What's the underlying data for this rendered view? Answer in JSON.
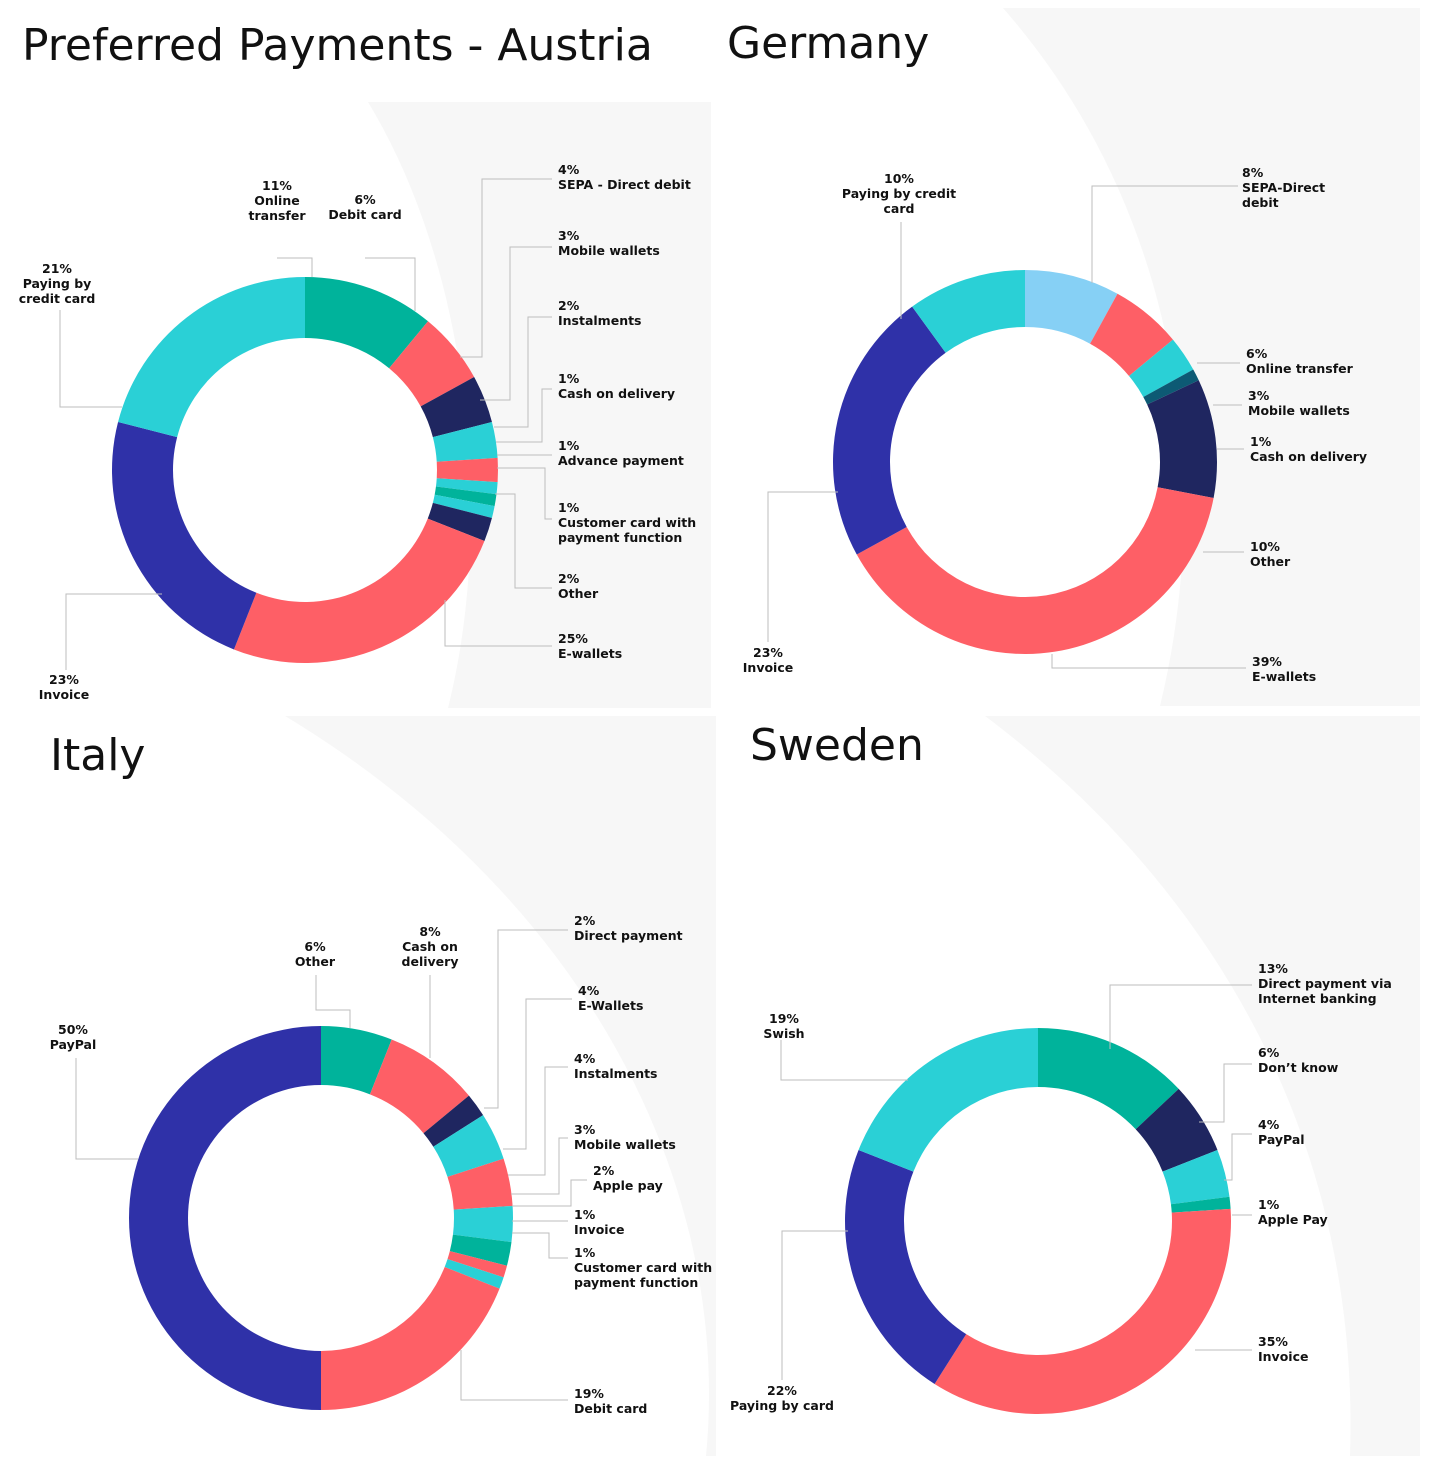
{
  "colors": {
    "teal": "#2ad0d6",
    "green": "#00b39b",
    "coral": "#fe5f66",
    "navy": "#1f2660",
    "indigo": "#2f31a8",
    "lightblue": "#86d0f5",
    "darkteal": "#0d5a74"
  },
  "chart_data": [
    {
      "type": "pie",
      "title": "Preferred Payments - Austria",
      "slices": [
        {
          "label": "Online transfer",
          "value": 11,
          "display": "11%",
          "color": "green"
        },
        {
          "label": "Debit card",
          "value": 6,
          "display": "6%",
          "color": "coral"
        },
        {
          "label": "SEPA -  Direct debit",
          "value": 4,
          "display": "4%",
          "color": "navy"
        },
        {
          "label": "Mobile wallets",
          "value": 3,
          "display": "3%",
          "color": "teal"
        },
        {
          "label": "Instalments",
          "value": 2,
          "display": "2%",
          "color": "coral"
        },
        {
          "label": "Cash on delivery",
          "value": 1,
          "display": "1%",
          "color": "teal"
        },
        {
          "label": "Advance payment",
          "value": 1,
          "display": "1%",
          "color": "green"
        },
        {
          "label": "Customer card with payment function",
          "value": 1,
          "display": "1%",
          "color": "teal"
        },
        {
          "label": "Other",
          "value": 2,
          "display": "2%",
          "color": "navy"
        },
        {
          "label": "E-wallets",
          "value": 25,
          "display": "25%",
          "color": "coral"
        },
        {
          "label": "Invoice",
          "value": 23,
          "display": "23%",
          "color": "indigo"
        },
        {
          "label": "Paying by credit card",
          "value": 21,
          "display": "21%",
          "color": "teal"
        }
      ]
    },
    {
      "type": "pie",
      "title": "Germany",
      "slices": [
        {
          "label": "SEPA-Direct debit",
          "value": 8,
          "display": "8%",
          "color": "lightblue"
        },
        {
          "label": "Online transfer",
          "value": 6,
          "display": "6%",
          "color": "coral"
        },
        {
          "label": "Mobile wallets",
          "value": 3,
          "display": "3%",
          "color": "teal"
        },
        {
          "label": "Cash on delivery",
          "value": 1,
          "display": "1%",
          "color": "darkteal"
        },
        {
          "label": "Other",
          "value": 10,
          "display": "10%",
          "color": "navy"
        },
        {
          "label": "E-wallets",
          "value": 39,
          "display": "39%",
          "color": "coral"
        },
        {
          "label": "Invoice",
          "value": 23,
          "display": "23%",
          "color": "indigo"
        },
        {
          "label": "Paying by credit card",
          "value": 10,
          "display": "10%",
          "color": "teal"
        }
      ]
    },
    {
      "type": "pie",
      "title": "Italy",
      "slices": [
        {
          "label": "Other",
          "value": 6,
          "display": "6%",
          "color": "green"
        },
        {
          "label": "Cash on delivery",
          "value": 8,
          "display": "8%",
          "color": "coral"
        },
        {
          "label": "Direct payment",
          "value": 2,
          "display": "2%",
          "color": "navy"
        },
        {
          "label": "E-Wallets",
          "value": 4,
          "display": "4%",
          "color": "teal"
        },
        {
          "label": "Instalments",
          "value": 4,
          "display": "4%",
          "color": "coral"
        },
        {
          "label": "Mobile wallets",
          "value": 3,
          "display": "3%",
          "color": "teal"
        },
        {
          "label": "Apple pay",
          "value": 2,
          "display": "2%",
          "color": "green"
        },
        {
          "label": "Invoice",
          "value": 1,
          "display": "1%",
          "color": "coral"
        },
        {
          "label": "Customer card with payment function",
          "value": 1,
          "display": "1%",
          "color": "teal"
        },
        {
          "label": "Debit card",
          "value": 19,
          "display": "19%",
          "color": "coral"
        },
        {
          "label": "PayPal",
          "value": 50,
          "display": "50%",
          "color": "indigo"
        }
      ]
    },
    {
      "type": "pie",
      "title": "Sweden",
      "slices": [
        {
          "label": "Direct payment via Internet banking",
          "value": 13,
          "display": "13%",
          "color": "green"
        },
        {
          "label": "Don’t know",
          "value": 6,
          "display": "6%",
          "color": "navy"
        },
        {
          "label": "PayPal",
          "value": 4,
          "display": "4%",
          "color": "teal"
        },
        {
          "label": "Apple Pay",
          "value": 1,
          "display": "1%",
          "color": "green"
        },
        {
          "label": "Invoice",
          "value": 35,
          "display": "35%",
          "color": "coral"
        },
        {
          "label": "Paying by card",
          "value": 22,
          "display": "22%",
          "color": "indigo"
        },
        {
          "label": "Swish",
          "value": 19,
          "display": "19%",
          "color": "teal"
        }
      ]
    }
  ]
}
